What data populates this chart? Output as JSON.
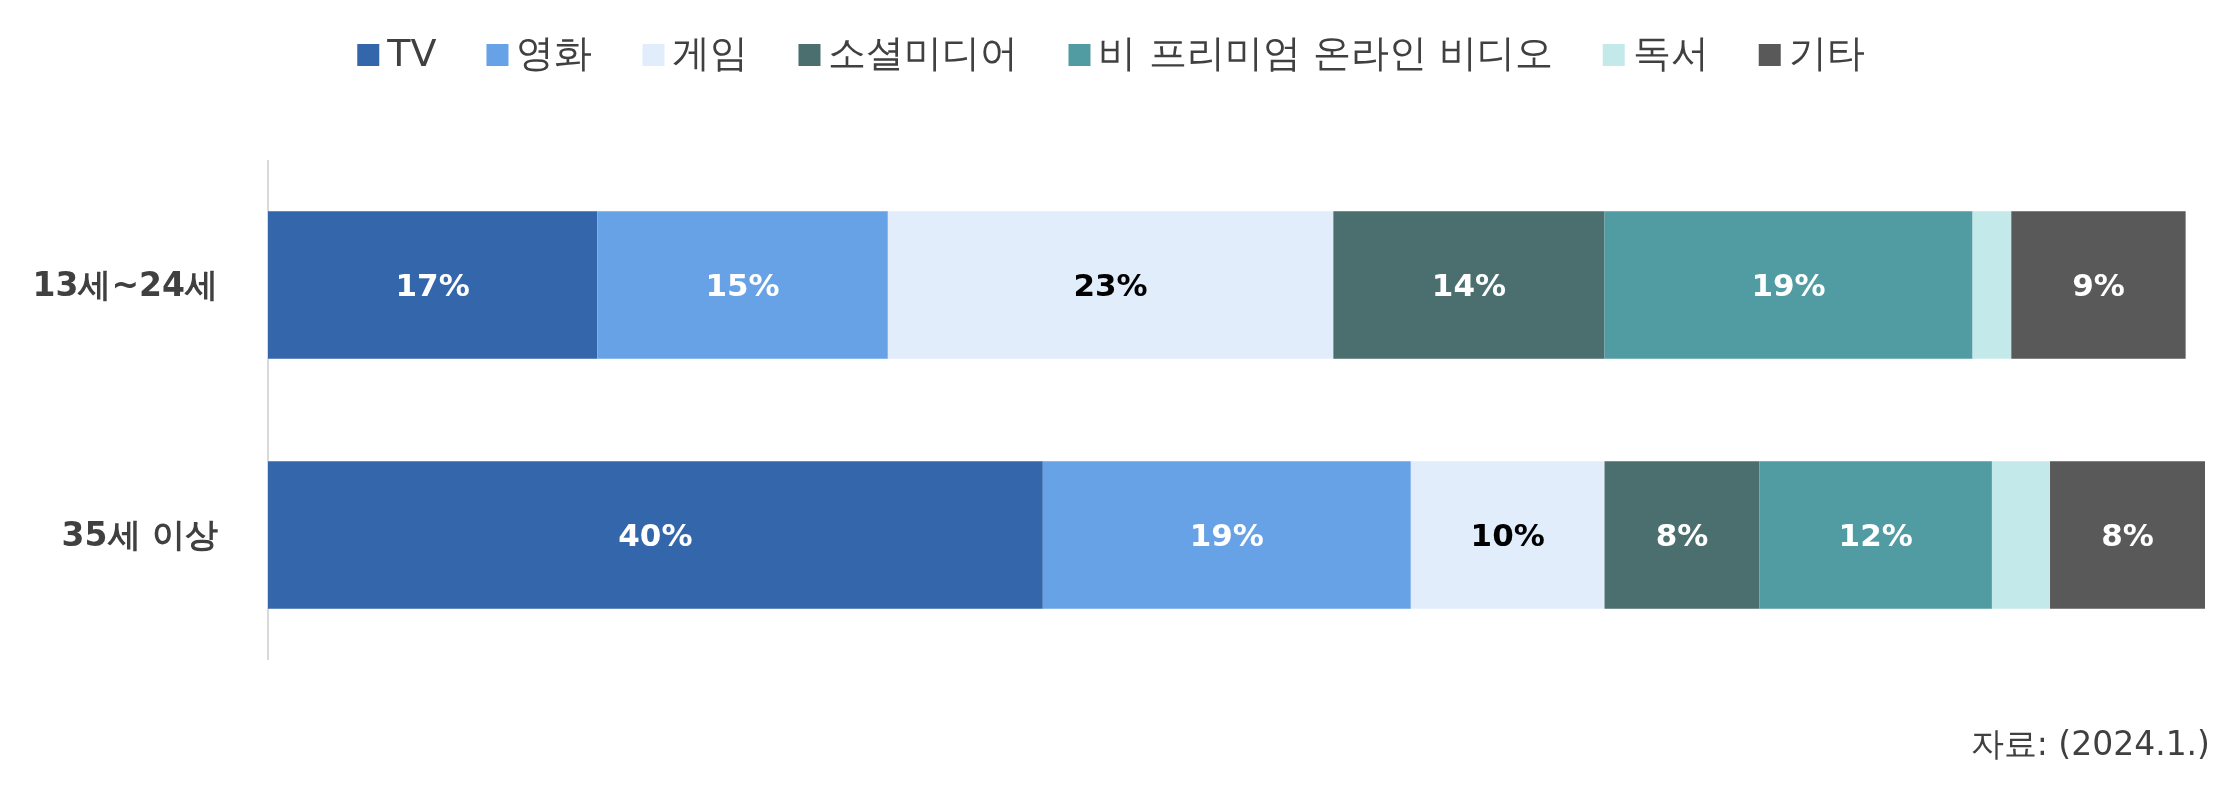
{
  "chart_data": {
    "type": "bar",
    "orientation": "horizontal",
    "stacked": true,
    "categories": [
      "13세~24세",
      "35세 이상"
    ],
    "xlim": [
      0,
      100
    ],
    "tick_labels": "y",
    "legend": "top",
    "series": [
      {
        "name": "TV",
        "color": "#3366aa",
        "values": [
          17,
          40
        ],
        "value_labels": [
          "17%",
          "40%"
        ]
      },
      {
        "name": "영화",
        "color": "#67a1e6",
        "values": [
          15,
          19
        ],
        "value_labels": [
          "15%",
          "19%"
        ]
      },
      {
        "name": "게임",
        "color": "#e1edfb",
        "values": [
          23,
          10
        ],
        "value_labels": [
          "23%",
          "10%"
        ]
      },
      {
        "name": "소셜미디어",
        "color": "#4b6e6e",
        "values": [
          14,
          8
        ],
        "value_labels": [
          "14%",
          "8%"
        ]
      },
      {
        "name": "비 프리미엄 온라인 비디오",
        "color": "#519ba3",
        "values": [
          19,
          12
        ],
        "value_labels": [
          "19%",
          "12%"
        ]
      },
      {
        "name": "독서",
        "color": "#c4e9ea",
        "values": [
          2,
          3
        ],
        "value_labels": [
          null,
          null
        ]
      },
      {
        "name": "기타",
        "color": "#595959",
        "values": [
          9,
          8
        ],
        "value_labels": [
          "9%",
          "8%"
        ]
      }
    ],
    "annotations": [
      "자료: (2024.1.)"
    ]
  }
}
